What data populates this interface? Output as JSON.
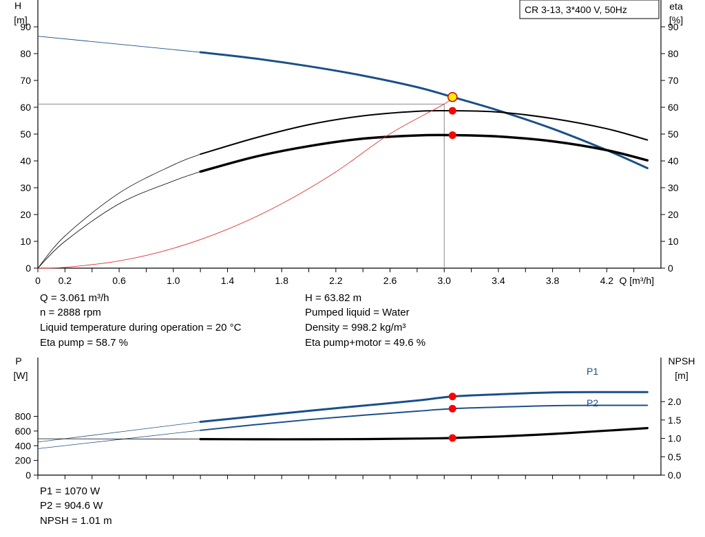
{
  "chart_data": [
    {
      "type": "line",
      "title": "CR 3-13, 3*400 V, 50Hz",
      "xlabel": "Q [m³/h]",
      "ylabel_left": [
        "H",
        "[m]"
      ],
      "ylabel_right": [
        "eta",
        "[%]"
      ],
      "xlim": [
        0,
        4.6
      ],
      "ylim": [
        0,
        100
      ],
      "x_ticks": [
        "0",
        "0.2",
        "0.6",
        "1.0",
        "1.4",
        "1.8",
        "2.2",
        "2.6",
        "3.0",
        "3.4",
        "3.8",
        "4.2"
      ],
      "x_tick_values": [
        0,
        0.2,
        0.6,
        1.0,
        1.4,
        1.8,
        2.2,
        2.6,
        3.0,
        3.4,
        3.8,
        4.2
      ],
      "y_ticks_left": [
        "0",
        "10",
        "20",
        "30",
        "40",
        "50",
        "60",
        "70",
        "80",
        "90"
      ],
      "y_ticks_right": [
        "0",
        "10",
        "20",
        "30",
        "40",
        "50",
        "60",
        "70",
        "80",
        "90"
      ],
      "y_tick_values": [
        0,
        10,
        20,
        30,
        40,
        50,
        60,
        70,
        80,
        90
      ],
      "grid": false,
      "series": [
        {
          "id": "head",
          "color": "#1a4f8a",
          "x": [
            0,
            1.2,
            1.6,
            2.0,
            2.4,
            2.8,
            3.061,
            3.4,
            3.8,
            4.2,
            4.5
          ],
          "y": [
            86.5,
            80.5,
            78.2,
            75.3,
            71.8,
            67.5,
            63.82,
            58.8,
            52.0,
            44.0,
            37.3
          ]
        },
        {
          "id": "eta-pump",
          "color": "#000000",
          "x": [
            0,
            0.2,
            0.6,
            1.0,
            1.2,
            1.6,
            2.0,
            2.4,
            2.8,
            3.061,
            3.4,
            3.8,
            4.2,
            4.5
          ],
          "y": [
            0,
            12,
            28,
            38.5,
            42.5,
            48.5,
            53.5,
            56.8,
            58.5,
            58.7,
            58.2,
            55.8,
            52.0,
            47.8
          ]
        },
        {
          "id": "eta-pump-motor",
          "color": "#000000",
          "x": [
            0,
            0.2,
            0.6,
            1.0,
            1.2,
            1.6,
            2.0,
            2.4,
            2.8,
            3.061,
            3.4,
            3.8,
            4.2,
            4.5
          ],
          "y": [
            0,
            10,
            24,
            32.5,
            36,
            41.5,
            45.5,
            48.3,
            49.5,
            49.6,
            49.1,
            47.3,
            44.0,
            40.2
          ]
        },
        {
          "id": "system-curve",
          "color": "#e03030",
          "x": [
            0,
            0.2,
            0.6,
            1.0,
            1.4,
            1.8,
            2.2,
            2.6,
            3.0,
            3.061
          ],
          "y": [
            0,
            0.3,
            2.7,
            7.4,
            14.5,
            24.0,
            35.9,
            50.1,
            61.2,
            63.8
          ]
        }
      ],
      "operating_point": {
        "Q": 3.061,
        "H": 63.82,
        "eta_pump": 58.7,
        "eta_pump_motor": 49.6
      },
      "marker_colors": {
        "duty": "#ffee00",
        "point": "#ff0000"
      }
    },
    {
      "type": "line",
      "xlabel": "",
      "ylabel_left": [
        "P",
        "[W]"
      ],
      "ylabel_right": [
        "NPSH",
        "[m]"
      ],
      "xlim": [
        0,
        4.6
      ],
      "ylim_left": [
        0,
        1600
      ],
      "ylim_right": [
        0,
        3.2
      ],
      "y_ticks_left": [
        "0",
        "200",
        "400",
        "600",
        "800"
      ],
      "y_tick_values_left": [
        0,
        200,
        400,
        600,
        800
      ],
      "y_ticks_right": [
        "0.0",
        "0.5",
        "1.0",
        "1.5",
        "2.0"
      ],
      "y_tick_values_right": [
        0,
        0.5,
        1.0,
        1.5,
        2.0
      ],
      "series": [
        {
          "id": "p1",
          "name": "P1",
          "color": "#1a4f8a",
          "x": [
            0,
            1.2,
            1.6,
            2.0,
            2.4,
            2.8,
            3.061,
            3.4,
            3.8,
            4.2,
            4.5
          ],
          "y": [
            450,
            725,
            800,
            875,
            945,
            1015,
            1070,
            1100,
            1125,
            1130,
            1130
          ]
        },
        {
          "id": "p2",
          "name": "P2",
          "color": "#1a4f8a",
          "x": [
            0,
            1.2,
            1.6,
            2.0,
            2.4,
            2.8,
            3.061,
            3.4,
            3.8,
            4.2,
            4.5
          ],
          "y": [
            360,
            610,
            685,
            755,
            815,
            870,
            904.6,
            925,
            945,
            950,
            950
          ]
        },
        {
          "id": "npsh",
          "color": "#000000",
          "axis": "right",
          "x": [
            0,
            1.2,
            1.6,
            2.0,
            2.4,
            2.8,
            3.061,
            3.4,
            3.8,
            4.2,
            4.5
          ],
          "y": [
            0.99,
            0.98,
            0.975,
            0.975,
            0.98,
            0.995,
            1.01,
            1.05,
            1.12,
            1.21,
            1.28
          ]
        }
      ],
      "operating_point": {
        "Q": 3.061,
        "P1": 1070,
        "P2": 904.6,
        "NPSH": 1.01
      }
    }
  ],
  "info_top": {
    "col1": [
      "Q = 3.061 m³/h",
      "n = 2888 rpm",
      "Liquid temperature during operation = 20 °C",
      "Eta pump = 58.7 %"
    ],
    "col2": [
      "H = 63.82 m",
      "Pumped liquid = Water",
      "Density = 998.2 kg/m³",
      "Eta pump+motor = 49.6 %"
    ]
  },
  "info_bottom": [
    "P1 = 1070 W",
    "P2 = 904.6 W",
    "NPSH = 1.01 m"
  ]
}
